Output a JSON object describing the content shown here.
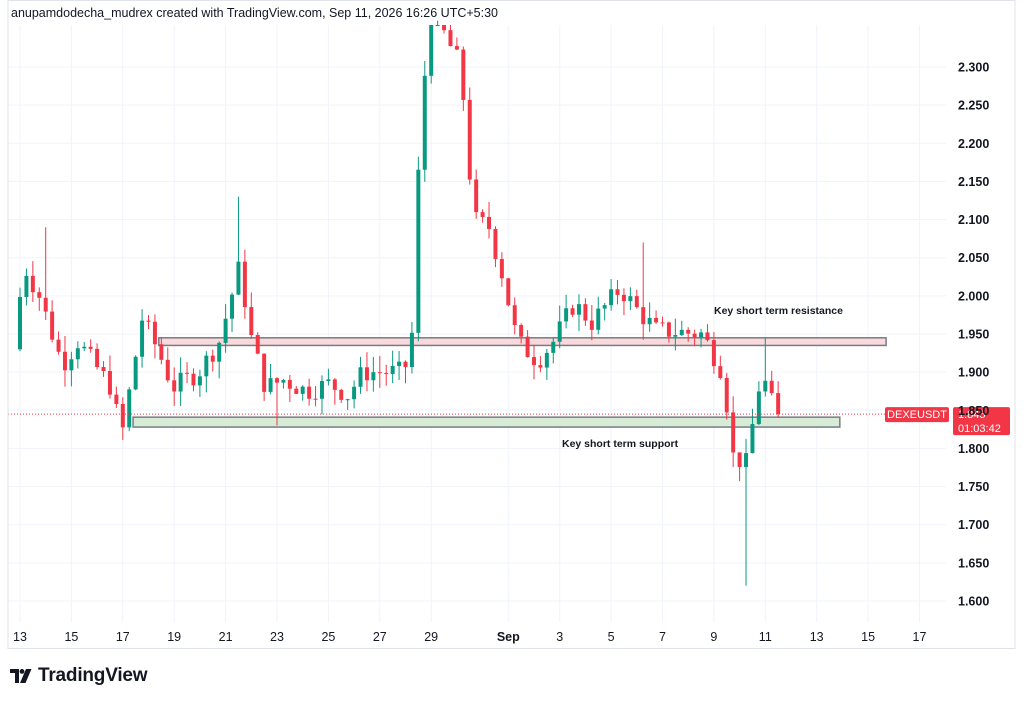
{
  "header": {
    "attribution": "anupamdodecha_mudrex created with TradingView.com, Sep 11, 2026 16:26 UTC+5:30"
  },
  "brand": {
    "name": "TradingView",
    "logo_icon": "tradingview-logo-icon"
  },
  "colors": {
    "up": "#089981",
    "down": "#F23645",
    "grid": "#f0f3fa",
    "resistance_fill": "#f9d9db",
    "support_fill": "#d6ecd6",
    "zone_border": "#787b86",
    "price_line": "#F23645"
  },
  "chart_data": {
    "type": "candlestick",
    "symbol": "DEXEUSDT",
    "last_price": "1.845",
    "countdown": "01:03:42",
    "ylim": [
      1.582,
      2.385
    ],
    "y_ticks": [
      "2.300",
      "2.250",
      "2.200",
      "2.150",
      "2.100",
      "2.050",
      "2.000",
      "1.950",
      "1.900",
      "1.850",
      "1.800",
      "1.750",
      "1.700",
      "1.650",
      "1.600"
    ],
    "x_ticks": [
      {
        "label": "13",
        "t": 0
      },
      {
        "label": "15",
        "t": 2
      },
      {
        "label": "17",
        "t": 4
      },
      {
        "label": "19",
        "t": 6
      },
      {
        "label": "21",
        "t": 8
      },
      {
        "label": "23",
        "t": 10
      },
      {
        "label": "25",
        "t": 12
      },
      {
        "label": "27",
        "t": 14
      },
      {
        "label": "29",
        "t": 16
      },
      {
        "label": "Sep",
        "t": 19,
        "bold": true
      },
      {
        "label": "3",
        "t": 21
      },
      {
        "label": "5",
        "t": 23
      },
      {
        "label": "7",
        "t": 25
      },
      {
        "label": "9",
        "t": 27
      },
      {
        "label": "11",
        "t": 29
      },
      {
        "label": "13",
        "t": 31
      },
      {
        "label": "15",
        "t": 33
      },
      {
        "label": "17",
        "t": 35
      }
    ],
    "x_range_days": [
      -0.15,
      36.0
    ],
    "zones": [
      {
        "name": "Key short term resistance",
        "low": 1.935,
        "high": 1.945,
        "t_start": 5.4,
        "t_end": 33.7,
        "kind": "resistance"
      },
      {
        "name": "Key short term support",
        "low": 1.828,
        "high": 1.841,
        "t_start": 4.4,
        "t_end": 31.9,
        "kind": "support"
      }
    ],
    "anchors": [
      {
        "t": 0,
        "p": 1.93
      },
      {
        "t": 0.4,
        "p": 2.04
      },
      {
        "t": 1.0,
        "p": 2.0
      },
      {
        "t": 1.9,
        "p": 1.91
      },
      {
        "t": 2.5,
        "p": 1.94
      },
      {
        "t": 3.8,
        "p": 1.88
      },
      {
        "t": 4.2,
        "p": 1.815
      },
      {
        "t": 5.0,
        "p": 1.97
      },
      {
        "t": 5.6,
        "p": 1.93
      },
      {
        "t": 6.2,
        "p": 1.88
      },
      {
        "t": 7.2,
        "p": 1.9
      },
      {
        "t": 8.0,
        "p": 1.94
      },
      {
        "t": 8.8,
        "p": 2.04
      },
      {
        "t": 9.2,
        "p": 1.95
      },
      {
        "t": 9.8,
        "p": 1.88
      },
      {
        "t": 10.5,
        "p": 1.89
      },
      {
        "t": 11.4,
        "p": 1.875
      },
      {
        "t": 12.3,
        "p": 1.885
      },
      {
        "t": 13.0,
        "p": 1.87
      },
      {
        "t": 13.6,
        "p": 1.9
      },
      {
        "t": 15.2,
        "p": 1.9
      },
      {
        "t": 15.5,
        "p": 1.95
      },
      {
        "t": 15.8,
        "p": 2.2
      },
      {
        "t": 16.2,
        "p": 2.38
      },
      {
        "t": 17.4,
        "p": 2.3
      },
      {
        "t": 17.9,
        "p": 2.1
      },
      {
        "t": 18.5,
        "p": 2.09
      },
      {
        "t": 19.0,
        "p": 2.03
      },
      {
        "t": 19.6,
        "p": 1.94
      },
      {
        "t": 20.4,
        "p": 1.915
      },
      {
        "t": 21.0,
        "p": 1.94
      },
      {
        "t": 21.8,
        "p": 1.99
      },
      {
        "t": 22.5,
        "p": 1.965
      },
      {
        "t": 23.6,
        "p": 2.01
      },
      {
        "t": 24.3,
        "p": 1.98
      },
      {
        "t": 25.0,
        "p": 1.955
      },
      {
        "t": 26.8,
        "p": 1.95
      },
      {
        "t": 27.6,
        "p": 1.9
      },
      {
        "t": 28.0,
        "p": 1.79
      },
      {
        "t": 28.5,
        "p": 1.78
      },
      {
        "t": 28.9,
        "p": 1.86
      },
      {
        "t": 29.1,
        "p": 1.9
      },
      {
        "t": 29.6,
        "p": 1.85
      },
      {
        "t": 29.7,
        "p": 1.845
      }
    ],
    "spikes": [
      {
        "t": 28.2,
        "low": 1.62
      },
      {
        "t": 29.1,
        "high": 1.945
      },
      {
        "t": 1.0,
        "high": 2.09
      },
      {
        "t": 8.6,
        "high": 2.13
      },
      {
        "t": 24.2,
        "high": 2.07
      },
      {
        "t": 13.3,
        "high": 1.92
      },
      {
        "t": 10.0,
        "low": 1.83
      }
    ],
    "ax_up": "#089981",
    "ax_down": "#F23645"
  }
}
